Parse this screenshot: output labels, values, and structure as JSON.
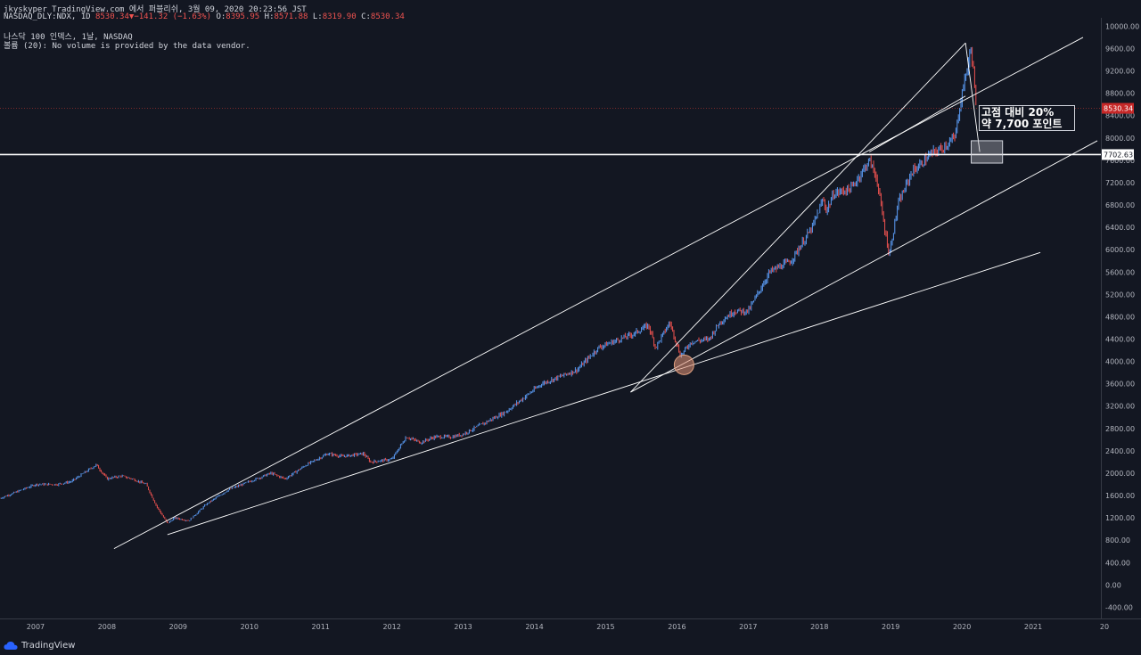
{
  "header": {
    "line1": "jkyskyper TradingView.com 에서 퍼블리쉬, 3월 09, 2020 20:23:56 JST",
    "symbol": "NASDAQ_DLY:NDX, 1D",
    "last": "8530.34",
    "change": "−141.32 (−1.63%)",
    "o_label": "O:",
    "o": "8395.95",
    "h_label": "H:",
    "h": "8571.88",
    "l_label": "L:",
    "l": "8319.90",
    "c_label": "C:",
    "c": "8530.34",
    "line3": "나스닥 100 인덱스, 1날, NASDAQ",
    "line4": "볼륨 (20): No volume is provided by the data vendor."
  },
  "annotation": {
    "line1": "고점 대비 20%",
    "line2": "약 7,700 포인트"
  },
  "logo": {
    "text": "TradingView",
    "icon": "tradingview-cloud-icon"
  },
  "colors": {
    "background": "#131722",
    "up": "#5b9cf6",
    "down": "#ef5350",
    "line": "#ffffff",
    "grid": "#2a2e39",
    "axis_text": "#b2b5be",
    "price_label": "#c62828"
  },
  "chart_data": {
    "type": "line",
    "x_ticks": [
      "2007",
      "2008",
      "2009",
      "2010",
      "2011",
      "2012",
      "2013",
      "2014",
      "2015",
      "2016",
      "2017",
      "2018",
      "2019",
      "2020",
      "2021",
      "20"
    ],
    "y_ticks": [
      "10000.00",
      "9600.00",
      "9200.00",
      "8800.00",
      "8400.00",
      "8000.00",
      "7600.00",
      "7200.00",
      "6800.00",
      "6400.00",
      "6000.00",
      "5600.00",
      "5200.00",
      "4800.00",
      "4400.00",
      "4000.00",
      "3600.00",
      "3200.00",
      "2800.00",
      "2400.00",
      "2000.00",
      "1600.00",
      "1200.00",
      "800.00",
      "400.00",
      "0.00",
      "-400.00"
    ],
    "ylim": [
      -600,
      10150
    ],
    "xlim": [
      2006.5,
      2021.95
    ],
    "current_price": {
      "value": 8530.34,
      "label": "8530.34"
    },
    "horizontal_level": {
      "value": 7702.63,
      "label": "7702.63"
    },
    "series": [
      {
        "x": [
          2006.5,
          2006.7,
          2007.0,
          2007.3,
          2007.5,
          2007.85,
          2008.0,
          2008.2,
          2008.35,
          2008.55,
          2008.7,
          2008.85,
          2008.95,
          2009.15,
          2009.4,
          2009.7,
          2010.0,
          2010.3,
          2010.5,
          2010.8,
          2011.1,
          2011.3,
          2011.6,
          2011.7,
          2012.0,
          2012.2,
          2012.4,
          2012.6,
          2012.85,
          2013.0,
          2013.3,
          2013.6,
          2013.9,
          2014.1,
          2014.3,
          2014.6,
          2014.9,
          2015.1,
          2015.4,
          2015.6,
          2015.7,
          2015.9,
          2016.05,
          2016.2,
          2016.45,
          2016.6,
          2016.8,
          2017.0,
          2017.3,
          2017.6,
          2017.9,
          2018.05,
          2018.1,
          2018.2,
          2018.45,
          2018.7,
          2018.8,
          2018.9,
          2018.98,
          2019.1,
          2019.3,
          2019.4,
          2019.55,
          2019.7,
          2019.9,
          2020.0,
          2020.13,
          2020.17,
          2020.2
        ],
        "y": [
          1550,
          1650,
          1800,
          1800,
          1850,
          2150,
          1900,
          1950,
          1900,
          1800,
          1400,
          1100,
          1200,
          1150,
          1450,
          1700,
          1850,
          2000,
          1900,
          2150,
          2350,
          2300,
          2350,
          2200,
          2250,
          2650,
          2550,
          2650,
          2650,
          2700,
          2900,
          3100,
          3400,
          3600,
          3700,
          3850,
          4250,
          4350,
          4500,
          4650,
          4250,
          4700,
          4100,
          4350,
          4400,
          4700,
          4900,
          4900,
          5600,
          5800,
          6400,
          6900,
          6700,
          7000,
          7100,
          7600,
          7300,
          6500,
          5900,
          6800,
          7400,
          7500,
          7700,
          7800,
          8000,
          8800,
          9600,
          9100,
          8500
        ]
      }
    ],
    "trend_lines": [
      {
        "x1": 2008.1,
        "y1": 650,
        "x2": 2021.7,
        "y2": 9800
      },
      {
        "x1": 2008.85,
        "y1": 900,
        "x2": 2021.1,
        "y2": 5950
      },
      {
        "x1": 2015.35,
        "y1": 3450,
        "x2": 2021.9,
        "y2": 7950
      },
      {
        "x1": 2015.35,
        "y1": 3450,
        "x2": 2020.05,
        "y2": 9700
      },
      {
        "x1": 2020.05,
        "y1": 9700,
        "x2": 2020.25,
        "y2": 7750
      },
      {
        "x1": 2018.7,
        "y1": 7750,
        "x2": 2020.05,
        "y2": 8750
      }
    ],
    "marker_circle": {
      "x": 2016.1,
      "y": 3940
    },
    "target_box": {
      "x1": 2020.13,
      "x2": 2020.57,
      "y1": 7550,
      "y2": 7950
    }
  }
}
